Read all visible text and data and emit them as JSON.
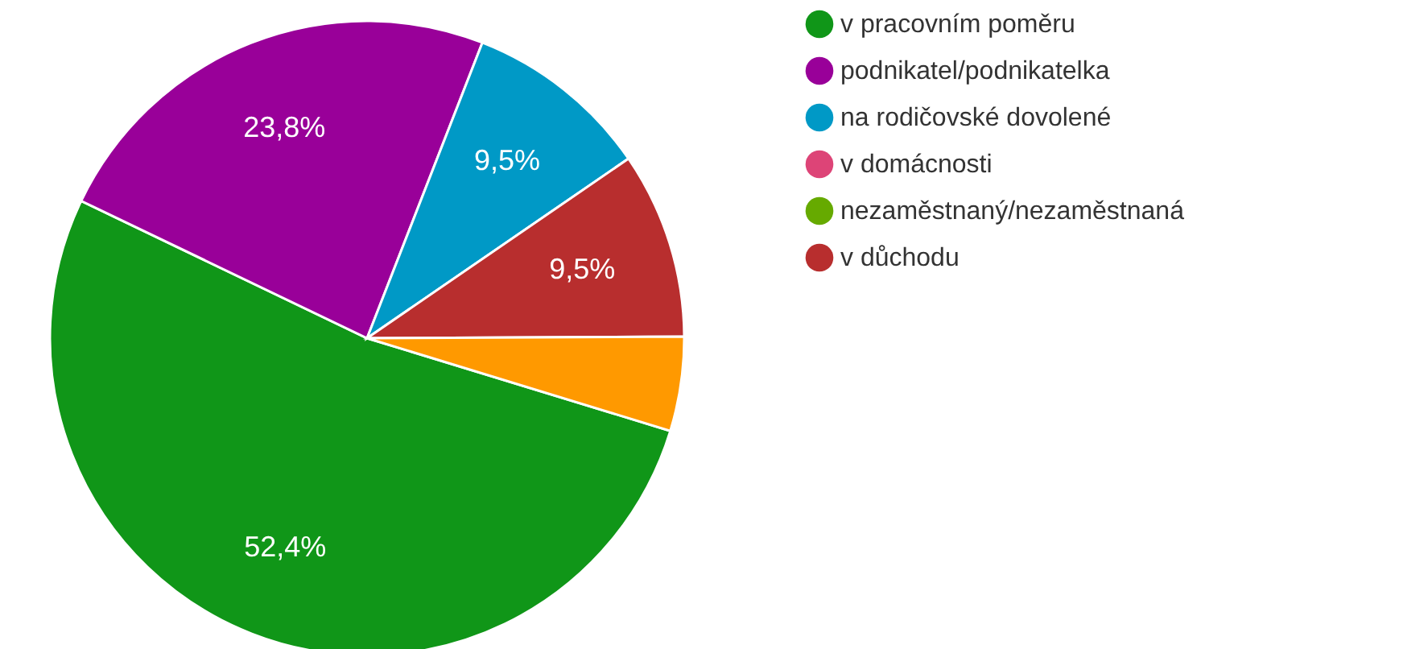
{
  "chart_data": {
    "type": "pie",
    "categories": [
      "v pracovním poměru",
      "podnikatel/podnikatelka",
      "na rodičovské dovolené",
      "v domácnosti",
      "nezaměstnaný/nezaměstnaná",
      "v důchodu",
      null
    ],
    "values": [
      52.4,
      23.8,
      9.5,
      0,
      0,
      9.5,
      4.8
    ],
    "colors": [
      "#109618",
      "#990099",
      "#0099c6",
      "#dd4477",
      "#66aa00",
      "#b82e2e",
      "#ff9900"
    ],
    "value_labels": [
      "52,4%",
      "23,8%",
      "9,5%",
      null,
      null,
      "9,5%",
      null
    ],
    "legend": "top right"
  }
}
